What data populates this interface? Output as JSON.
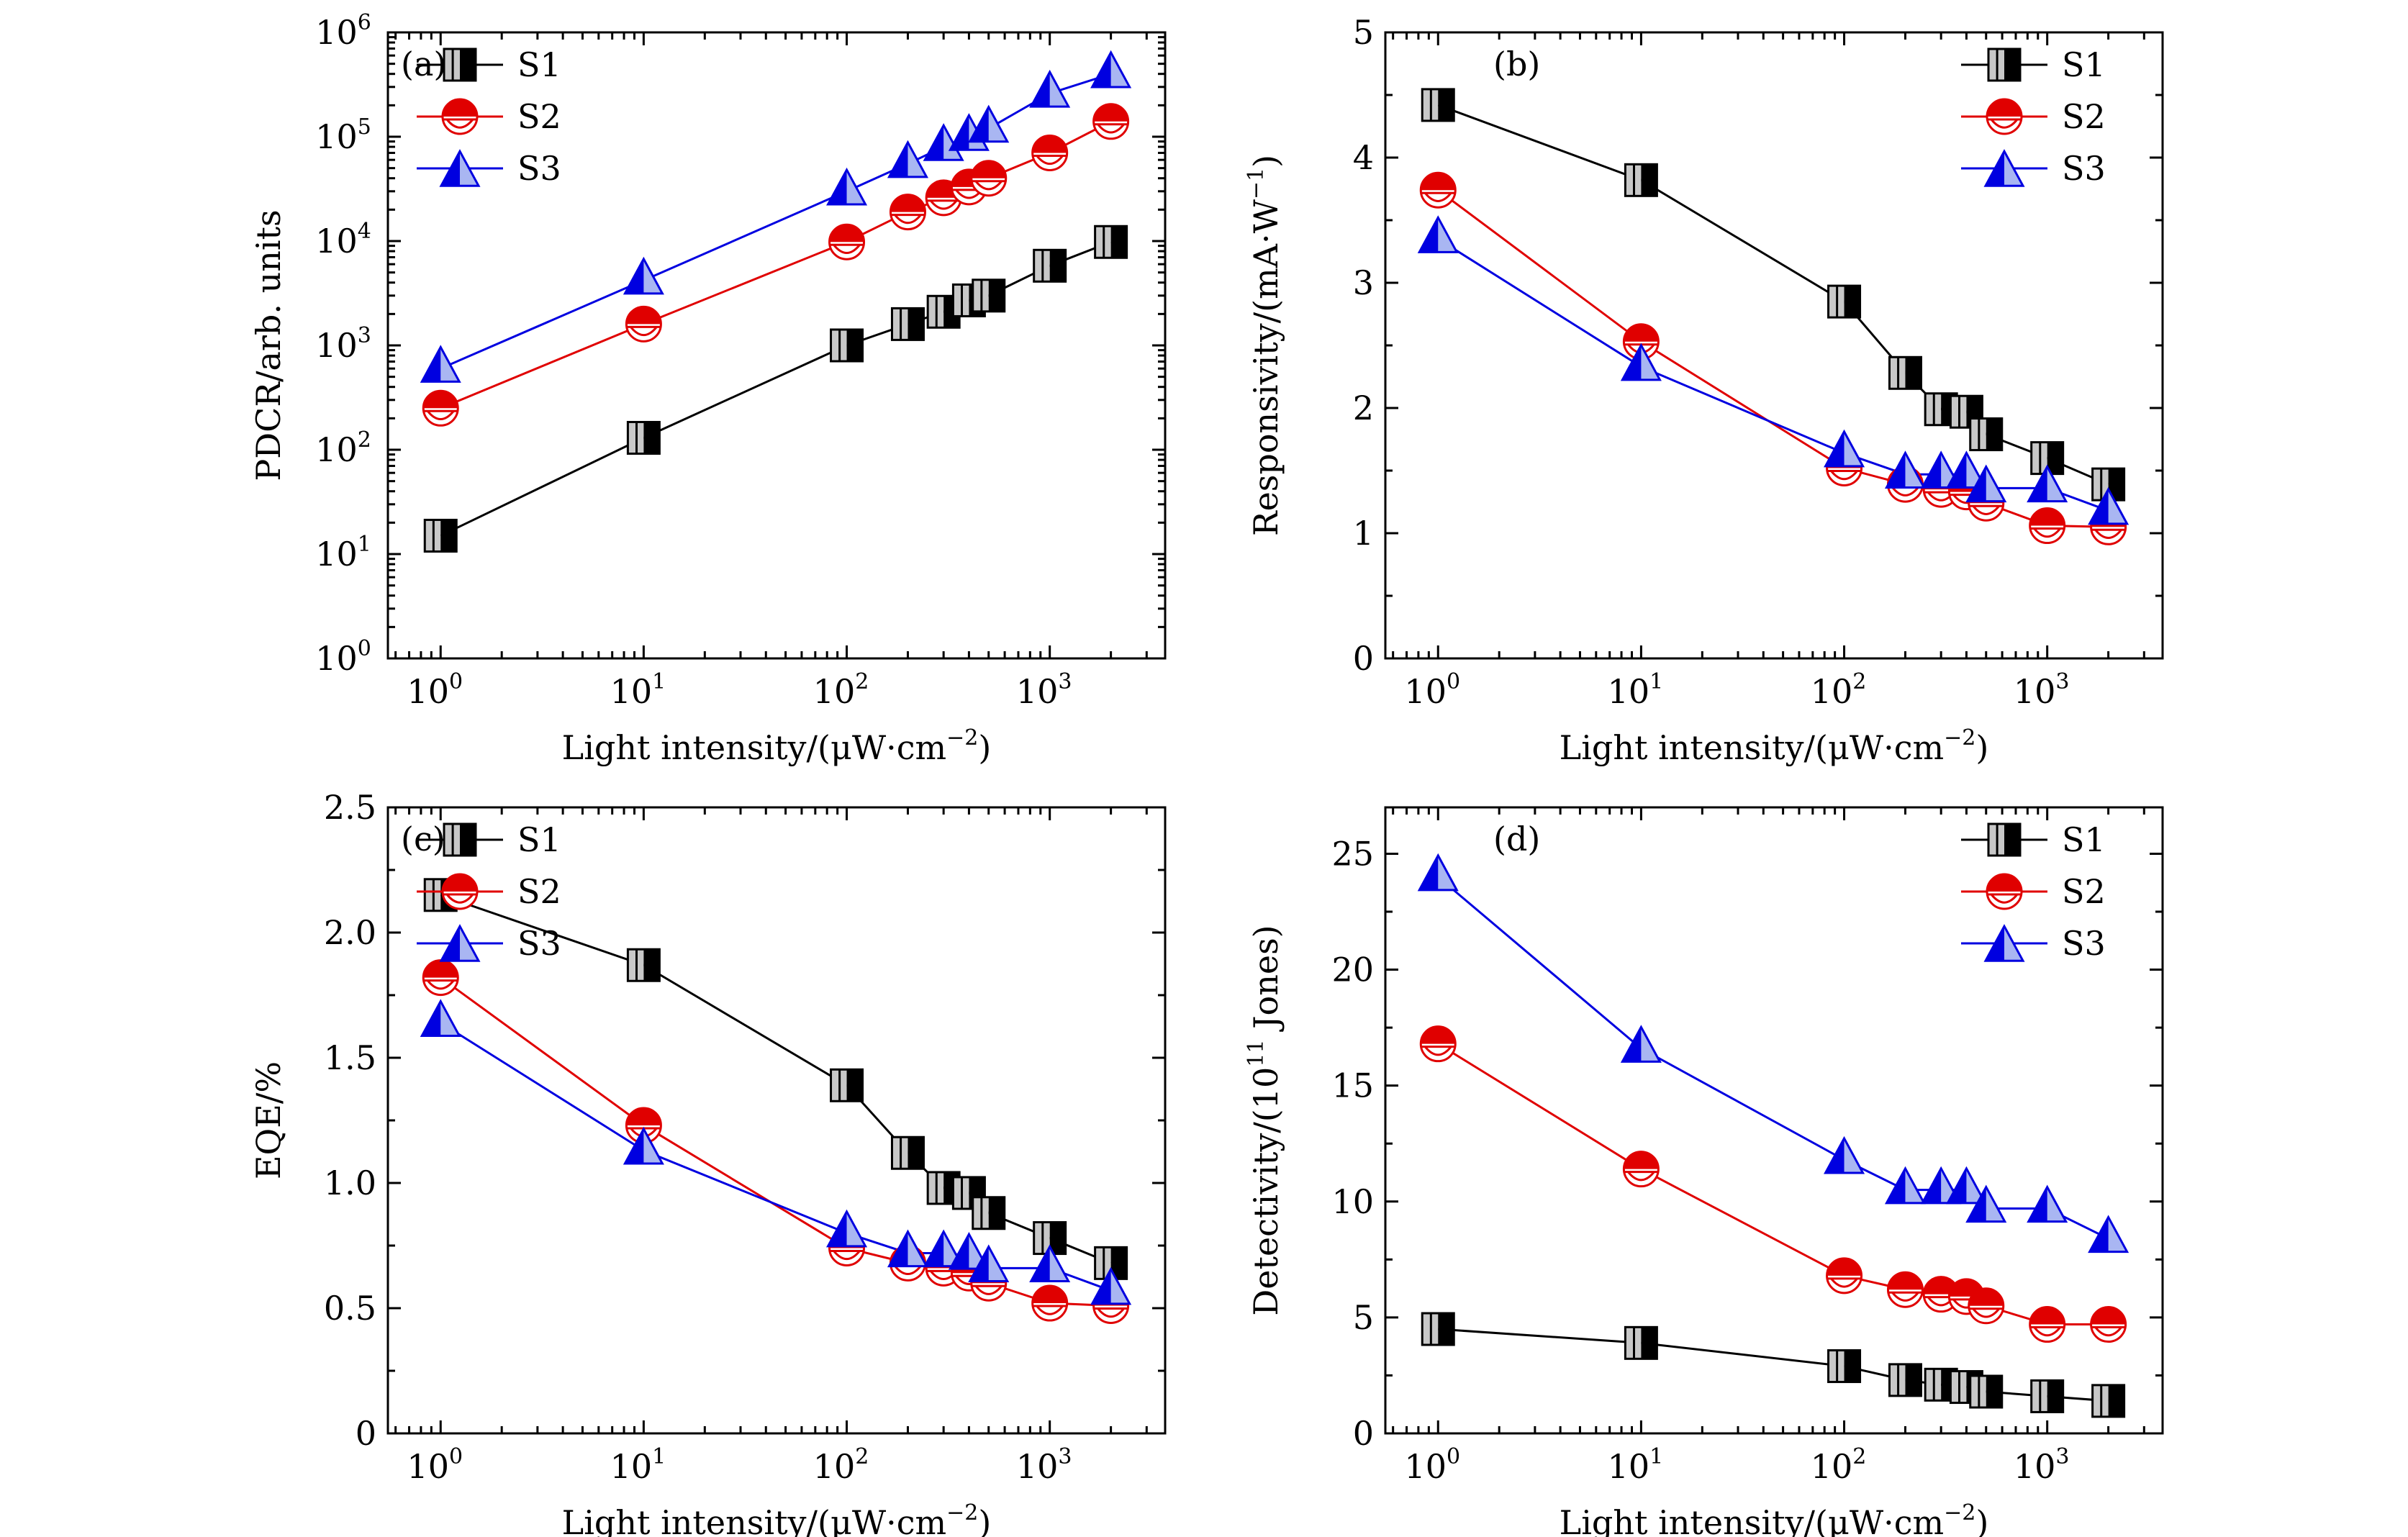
{
  "figure": {
    "x_axis_label": "Light intensity/(μW·cm",
    "x_axis_label_sup": "−2",
    "x_axis_label_end": ")"
  },
  "series_names": [
    "S1",
    "S2",
    "S3"
  ],
  "series_colors": {
    "S1": "#000000",
    "S2": "#e00000",
    "S3": "#0000e0"
  },
  "markers": {
    "S1": "half-filled-square",
    "S2": "half-filled-circle",
    "S3": "half-filled-triangle"
  },
  "x_ticks": {
    "base": "10",
    "exponents": [
      "0",
      "1",
      "2",
      "3"
    ],
    "values": [
      1,
      10,
      100,
      1000
    ]
  },
  "chart_data": [
    {
      "panel": "(a)",
      "type": "line",
      "ylabel": "PDCR/arb. units",
      "xlabel": "Light intensity/(μW·cm−2)",
      "xscale": "log",
      "yscale": "log",
      "xlim": [
        0.55,
        3700
      ],
      "ylim": [
        1,
        1000000
      ],
      "y_ticks": {
        "base": "10",
        "exponents": [
          "0",
          "1",
          "2",
          "3",
          "4",
          "5",
          "6"
        ],
        "values": [
          1,
          10,
          100,
          1000,
          10000,
          100000,
          1000000
        ]
      },
      "legend_position": "top-left",
      "x": [
        1,
        10,
        100,
        200,
        300,
        400,
        500,
        1000,
        2000
      ],
      "series": [
        {
          "name": "S1",
          "values": [
            15,
            130,
            1000,
            1600,
            2100,
            2700,
            3000,
            5800,
            9800
          ]
        },
        {
          "name": "S2",
          "values": [
            250,
            1600,
            9800,
            19000,
            26000,
            33000,
            40000,
            70000,
            140000
          ]
        },
        {
          "name": "S3",
          "values": [
            600,
            4200,
            30000,
            55000,
            80000,
            100000,
            120000,
            260000,
            400000
          ]
        }
      ]
    },
    {
      "panel": "(b)",
      "type": "line",
      "ylabel": "Responsivity/(mA·W",
      "ylabel_sup": "−1",
      "ylabel_end": ")",
      "xlabel": "Light intensity/(μW·cm−2)",
      "xscale": "log",
      "xlim": [
        0.55,
        3700
      ],
      "ylim": [
        0,
        5
      ],
      "y_ticks": [
        0,
        1,
        2,
        3,
        4,
        5
      ],
      "y_tick_labels": [
        "0",
        "1",
        "2",
        "3",
        "4",
        "5"
      ],
      "legend_position": "top-right",
      "x": [
        1,
        10,
        100,
        200,
        300,
        400,
        500,
        1000,
        2000
      ],
      "series": [
        {
          "name": "S1",
          "values": [
            4.42,
            3.82,
            2.85,
            2.28,
            1.99,
            1.97,
            1.79,
            1.6,
            1.39
          ]
        },
        {
          "name": "S2",
          "values": [
            3.74,
            2.53,
            1.52,
            1.39,
            1.35,
            1.33,
            1.24,
            1.06,
            1.05
          ]
        },
        {
          "name": "S3",
          "values": [
            3.35,
            2.33,
            1.64,
            1.47,
            1.47,
            1.47,
            1.36,
            1.36,
            1.18
          ]
        }
      ]
    },
    {
      "panel": "(c)",
      "type": "line",
      "ylabel": "EQE/%",
      "xlabel": "Light intensity/(μW·cm−2)",
      "xscale": "log",
      "xlim": [
        0.55,
        3700
      ],
      "ylim": [
        0,
        2.5
      ],
      "y_ticks": [
        0,
        0.5,
        1.0,
        1.5,
        2.0,
        2.5
      ],
      "y_tick_labels": [
        "0",
        "0.5",
        "1.0",
        "1.5",
        "2.0",
        "2.5"
      ],
      "legend_position": "top-right",
      "x": [
        1,
        10,
        100,
        200,
        300,
        400,
        500,
        1000,
        2000
      ],
      "series": [
        {
          "name": "S1",
          "values": [
            2.15,
            1.87,
            1.39,
            1.12,
            0.98,
            0.96,
            0.88,
            0.78,
            0.68
          ]
        },
        {
          "name": "S2",
          "values": [
            1.82,
            1.23,
            0.74,
            0.68,
            0.66,
            0.64,
            0.6,
            0.52,
            0.51
          ]
        },
        {
          "name": "S3",
          "values": [
            1.64,
            1.13,
            0.8,
            0.72,
            0.72,
            0.71,
            0.66,
            0.66,
            0.57
          ]
        }
      ]
    },
    {
      "panel": "(d)",
      "type": "line",
      "ylabel": "Detectivity/(10",
      "ylabel_sup": "11",
      "ylabel_end": " Jones)",
      "xlabel": "Light intensity/(μW·cm−2)",
      "xscale": "log",
      "xlim": [
        0.55,
        3700
      ],
      "ylim": [
        0,
        27
      ],
      "y_ticks": [
        0,
        5,
        10,
        15,
        20,
        25
      ],
      "y_tick_labels": [
        "0",
        "5",
        "10",
        "15",
        "20",
        "25"
      ],
      "legend_position": "top-right",
      "x": [
        1,
        10,
        100,
        200,
        300,
        400,
        500,
        1000,
        2000
      ],
      "series": [
        {
          "name": "S1",
          "values": [
            4.5,
            3.9,
            2.9,
            2.3,
            2.1,
            2.0,
            1.8,
            1.6,
            1.4
          ]
        },
        {
          "name": "S2",
          "values": [
            16.8,
            11.4,
            6.8,
            6.2,
            6.0,
            5.9,
            5.5,
            4.7,
            4.7
          ]
        },
        {
          "name": "S3",
          "values": [
            24.0,
            16.6,
            11.8,
            10.5,
            10.5,
            10.5,
            9.7,
            9.7,
            8.4
          ]
        }
      ]
    }
  ]
}
